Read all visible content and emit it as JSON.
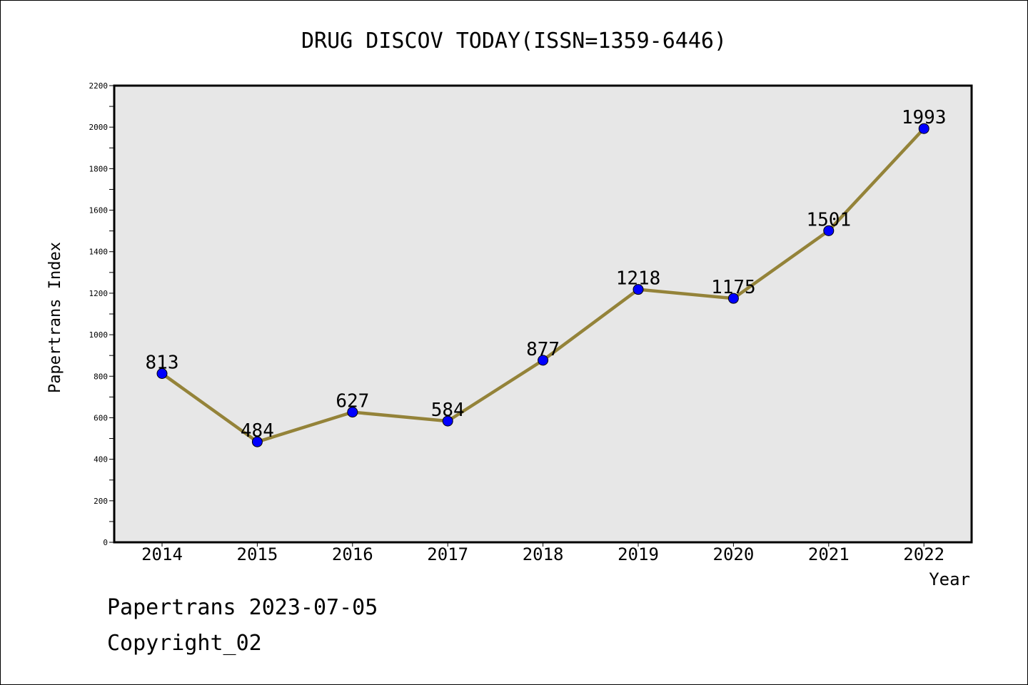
{
  "chart_data": {
    "type": "line",
    "title": "DRUG DISCOV TODAY(ISSN=1359-6446)",
    "xlabel": "Year",
    "ylabel": "Papertrans Index",
    "categories": [
      "2014",
      "2015",
      "2016",
      "2017",
      "2018",
      "2019",
      "2020",
      "2021",
      "2022"
    ],
    "values": [
      813,
      484,
      627,
      584,
      877,
      1218,
      1175,
      1501,
      1993
    ],
    "data_labels": [
      "813",
      "484",
      "627",
      "584",
      "877",
      "1218",
      "1175",
      "1501",
      "1993"
    ],
    "ylim": [
      0,
      2200
    ],
    "yticks": [
      "0",
      "200",
      "400",
      "600",
      "800",
      "1000",
      "1200",
      "1400",
      "1600",
      "1800",
      "2000",
      "2200"
    ],
    "grid": false,
    "line_color": "#948339",
    "marker_color": "#0000ff",
    "plot_background": "#e7e7e7"
  },
  "footer": {
    "date_line": "Papertrans 2023-07-05",
    "copyright_line": "Copyright_02"
  }
}
